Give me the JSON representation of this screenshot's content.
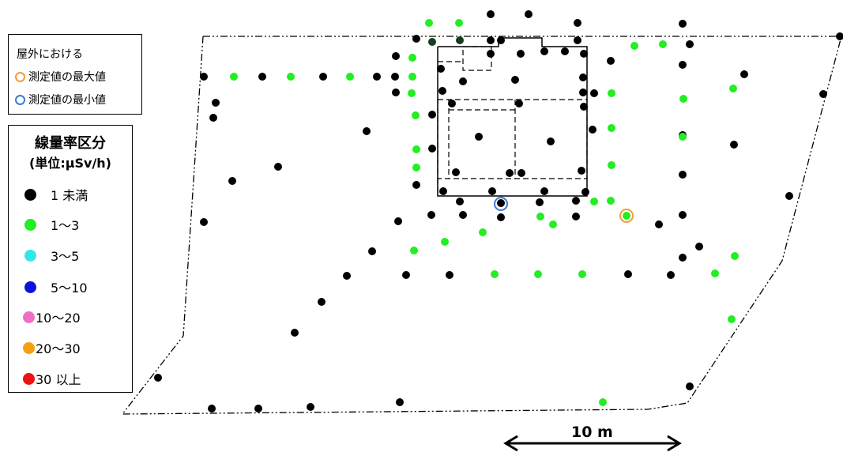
{
  "legend_top": {
    "title": "屋外における",
    "items": [
      {
        "label": "測定値の最大値",
        "color": "#f39c3c"
      },
      {
        "label": "測定値の最小値",
        "color": "#3b7bd1"
      }
    ]
  },
  "legend_main": {
    "title": "線量率区分",
    "unit": "(単位:µSv/h)",
    "items": [
      {
        "label": "1 未満",
        "color": "#000000"
      },
      {
        "label": "1〜3",
        "color": "#22ee22"
      },
      {
        "label": "3〜5",
        "color": "#33e6ee"
      },
      {
        "label": "5〜10",
        "color": "#1010dd"
      },
      {
        "label": "10〜20",
        "color": "#ee6ec8"
      },
      {
        "label": "20〜30",
        "color": "#f5a012"
      },
      {
        "label": "30 以上",
        "color": "#ee1111"
      }
    ]
  },
  "scale_bar": {
    "label": "10 m"
  }
}
